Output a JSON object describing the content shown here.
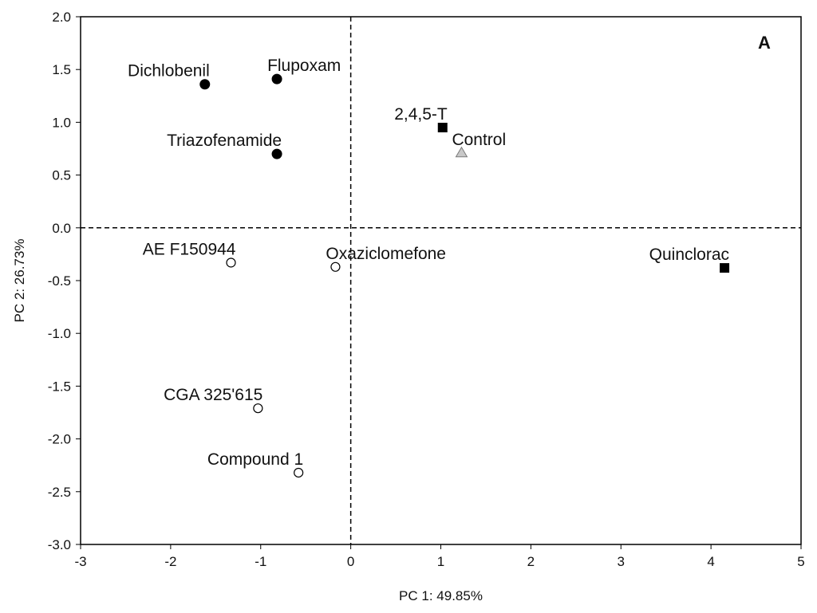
{
  "chart_data": {
    "type": "scatter",
    "panel_label": "A",
    "xlabel": "PC 1: 49.85%",
    "ylabel": "PC 2: 26.73%",
    "xlim": [
      -3,
      5
    ],
    "ylim": [
      -3,
      2
    ],
    "xticks": [
      -3,
      -2,
      -1,
      0,
      1,
      2,
      3,
      4,
      5
    ],
    "yticks": [
      -3.0,
      -2.5,
      -2.0,
      -1.5,
      -1.0,
      -0.5,
      0.0,
      0.5,
      1.0,
      1.5,
      2.0
    ],
    "reference_lines": {
      "x": 0,
      "y": 0,
      "style": "dashed"
    },
    "points": [
      {
        "label": "Dichlobenil",
        "x": -1.62,
        "y": 1.36,
        "marker": "circle-filled",
        "label_pos": "above-left"
      },
      {
        "label": "Flupoxam",
        "x": -0.82,
        "y": 1.41,
        "marker": "circle-filled",
        "label_pos": "above-right"
      },
      {
        "label": "Triazofenamide",
        "x": -0.82,
        "y": 0.7,
        "marker": "circle-filled",
        "label_pos": "above-left"
      },
      {
        "label": "2,4,5-T",
        "x": 1.02,
        "y": 0.95,
        "marker": "square-filled",
        "label_pos": "above-left"
      },
      {
        "label": "Control",
        "x": 1.23,
        "y": 0.71,
        "marker": "triangle-gray",
        "label_pos": "above-right"
      },
      {
        "label": "AE F150944",
        "x": -1.33,
        "y": -0.33,
        "marker": "circle-open",
        "label_pos": "above-left"
      },
      {
        "label": "Oxaziclomefone",
        "x": -0.17,
        "y": -0.37,
        "marker": "circle-open",
        "label_pos": "above-right"
      },
      {
        "label": "Quinclorac",
        "x": 4.15,
        "y": -0.38,
        "marker": "square-filled",
        "label_pos": "above-left"
      },
      {
        "label": "CGA 325'615",
        "x": -1.03,
        "y": -1.71,
        "marker": "circle-open",
        "label_pos": "above-left"
      },
      {
        "label": "Compound 1",
        "x": -0.58,
        "y": -2.32,
        "marker": "circle-open",
        "label_pos": "above-left"
      }
    ],
    "colors": {
      "filled": "#000000",
      "open_fill": "#ffffff",
      "triangle": "#c8c8c8",
      "triangle_stroke": "#7a7a7a",
      "axis": "#000000"
    }
  }
}
